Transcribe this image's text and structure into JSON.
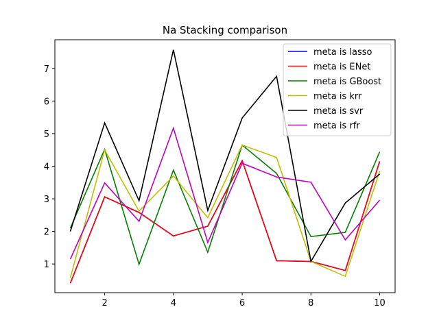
{
  "chart_data": {
    "type": "line",
    "title": "Na Stacking comparison",
    "xlabel": "",
    "ylabel": "",
    "x": [
      1,
      2,
      3,
      4,
      5,
      6,
      7,
      8,
      9,
      10
    ],
    "xlim": [
      0.55,
      10.45
    ],
    "ylim": [
      0.12,
      7.88
    ],
    "xticks": [
      2,
      4,
      6,
      8,
      10
    ],
    "yticks": [
      1,
      2,
      3,
      4,
      5,
      6,
      7
    ],
    "grid": false,
    "legend_position": "top-right",
    "series": [
      {
        "name": "meta is lasso",
        "color": "#0000ff",
        "values": [
          0.41,
          3.06,
          2.58,
          1.86,
          2.16,
          4.17,
          1.1,
          1.08,
          0.8,
          4.15
        ]
      },
      {
        "name": "meta is ENet",
        "color": "#ff0000",
        "values": [
          0.41,
          3.06,
          2.58,
          1.86,
          2.16,
          4.17,
          1.1,
          1.08,
          0.8,
          4.15
        ]
      },
      {
        "name": "meta is GBoost",
        "color": "#008000",
        "values": [
          2.1,
          4.52,
          0.99,
          3.88,
          1.36,
          4.65,
          3.78,
          1.84,
          1.97,
          4.44
        ]
      },
      {
        "name": "meta is krr",
        "color": "#bfbf00",
        "values": [
          0.57,
          4.5,
          2.62,
          3.7,
          2.42,
          4.65,
          4.27,
          1.08,
          0.62,
          3.85
        ]
      },
      {
        "name": "meta is svr",
        "color": "#000000",
        "values": [
          2.0,
          5.33,
          2.94,
          7.57,
          2.64,
          5.48,
          6.76,
          1.08,
          2.87,
          3.76
        ]
      },
      {
        "name": "meta is rfr",
        "color": "#bf00bf",
        "values": [
          1.15,
          3.49,
          2.31,
          5.17,
          1.66,
          4.09,
          3.67,
          3.51,
          1.74,
          2.96
        ]
      }
    ]
  }
}
